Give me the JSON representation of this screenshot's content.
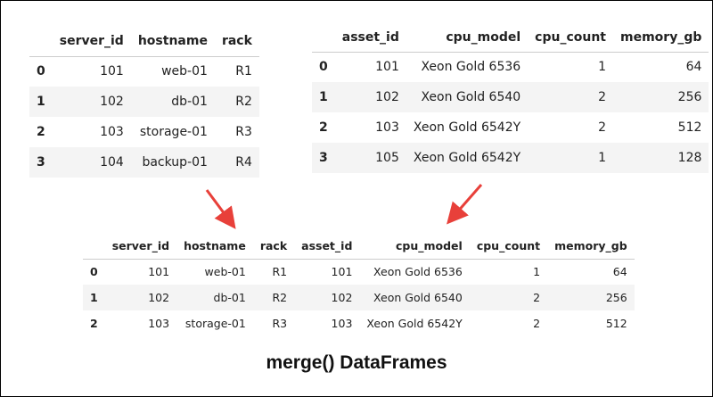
{
  "left_table": {
    "columns": [
      "",
      "server_id",
      "hostname",
      "rack"
    ],
    "rows": [
      [
        "0",
        "101",
        "web-01",
        "R1"
      ],
      [
        "1",
        "102",
        "db-01",
        "R2"
      ],
      [
        "2",
        "103",
        "storage-01",
        "R3"
      ],
      [
        "3",
        "104",
        "backup-01",
        "R4"
      ]
    ]
  },
  "right_table": {
    "columns": [
      "",
      "asset_id",
      "cpu_model",
      "cpu_count",
      "memory_gb"
    ],
    "rows": [
      [
        "0",
        "101",
        "Xeon Gold 6536",
        "1",
        "64"
      ],
      [
        "1",
        "102",
        "Xeon Gold 6540",
        "2",
        "256"
      ],
      [
        "2",
        "103",
        "Xeon Gold 6542Y",
        "2",
        "512"
      ],
      [
        "3",
        "105",
        "Xeon Gold 6542Y",
        "1",
        "128"
      ]
    ]
  },
  "merged_table": {
    "columns": [
      "",
      "server_id",
      "hostname",
      "rack",
      "asset_id",
      "cpu_model",
      "cpu_count",
      "memory_gb"
    ],
    "rows": [
      [
        "0",
        "101",
        "web-01",
        "R1",
        "101",
        "Xeon Gold 6536",
        "1",
        "64"
      ],
      [
        "1",
        "102",
        "db-01",
        "R2",
        "102",
        "Xeon Gold 6540",
        "2",
        "256"
      ],
      [
        "2",
        "103",
        "storage-01",
        "R3",
        "103",
        "Xeon Gold 6542Y",
        "2",
        "512"
      ]
    ]
  },
  "caption": "merge() DataFrames",
  "arrow_color": "#e8403a"
}
